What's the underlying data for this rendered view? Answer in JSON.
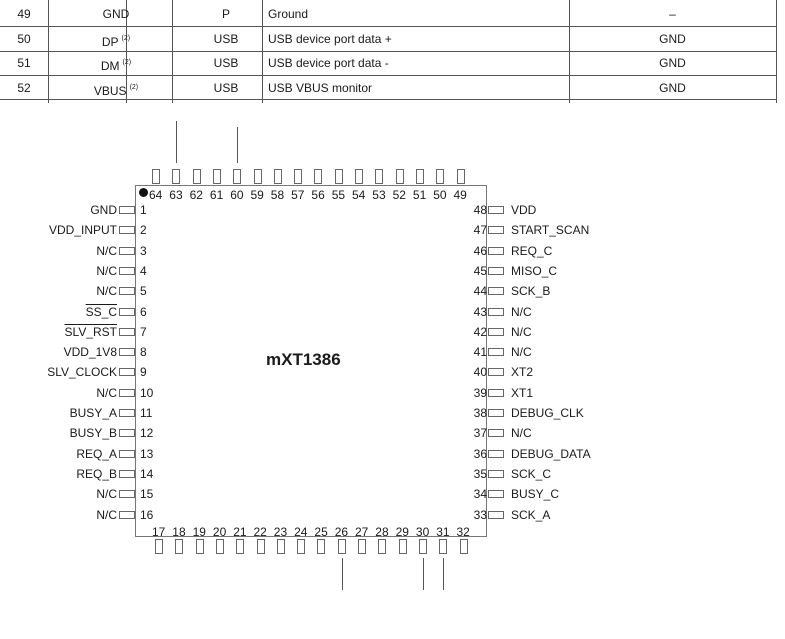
{
  "table": {
    "rows": [
      {
        "pin": "49",
        "name": "GND",
        "note": "",
        "type": "P",
        "description": "Ground",
        "connect": "–"
      },
      {
        "pin": "50",
        "name": "DP",
        "note": "(2)",
        "type": "USB",
        "description": "USB device port data +",
        "connect": "GND"
      },
      {
        "pin": "51",
        "name": "DM",
        "note": "(2)",
        "type": "USB",
        "description": "USB device port data -",
        "connect": "GND"
      },
      {
        "pin": "52",
        "name": "VBUS",
        "note": "(2)",
        "type": "USB",
        "description": "USB VBUS monitor",
        "connect": "GND"
      }
    ]
  },
  "chip": {
    "name": "mXT1386",
    "left_pins": [
      {
        "num": "1",
        "label": "GND"
      },
      {
        "num": "2",
        "label": "VDD_INPUT"
      },
      {
        "num": "3",
        "label": "N/C"
      },
      {
        "num": "4",
        "label": "N/C"
      },
      {
        "num": "5",
        "label": "N/C"
      },
      {
        "num": "6",
        "label": "SS_C",
        "overline": true
      },
      {
        "num": "7",
        "label": "SLV_RST",
        "overline": true
      },
      {
        "num": "8",
        "label": "VDD_1V8"
      },
      {
        "num": "9",
        "label": "SLV_CLOCK"
      },
      {
        "num": "10",
        "label": "N/C"
      },
      {
        "num": "11",
        "label": "BUSY_A"
      },
      {
        "num": "12",
        "label": "BUSY_B"
      },
      {
        "num": "13",
        "label": "REQ_A"
      },
      {
        "num": "14",
        "label": "REQ_B"
      },
      {
        "num": "15",
        "label": "N/C"
      },
      {
        "num": "16",
        "label": "N/C"
      }
    ],
    "right_pins": [
      {
        "num": "48",
        "label": "VDD"
      },
      {
        "num": "47",
        "label": "START_SCAN"
      },
      {
        "num": "46",
        "label": "REQ_C"
      },
      {
        "num": "45",
        "label": "MISO_C"
      },
      {
        "num": "44",
        "label": "SCK_B"
      },
      {
        "num": "43",
        "label": "N/C"
      },
      {
        "num": "42",
        "label": "N/C"
      },
      {
        "num": "41",
        "label": "N/C"
      },
      {
        "num": "40",
        "label": "XT2"
      },
      {
        "num": "39",
        "label": "XT1"
      },
      {
        "num": "38",
        "label": "DEBUG_CLK"
      },
      {
        "num": "37",
        "label": "N/C"
      },
      {
        "num": "36",
        "label": "DEBUG_DATA"
      },
      {
        "num": "35",
        "label": "SCK_C"
      },
      {
        "num": "34",
        "label": "BUSY_C"
      },
      {
        "num": "33",
        "label": "SCK_A"
      }
    ],
    "top_pins": [
      "64",
      "63",
      "62",
      "61",
      "60",
      "59",
      "58",
      "57",
      "56",
      "55",
      "54",
      "53",
      "52",
      "51",
      "50",
      "49"
    ],
    "bottom_pins": [
      "17",
      "18",
      "19",
      "20",
      "21",
      "22",
      "23",
      "24",
      "25",
      "26",
      "27",
      "28",
      "29",
      "30",
      "31",
      "32"
    ],
    "top_wired_pins": [
      "63",
      "60"
    ],
    "bottom_wired_pins": [
      "26",
      "30",
      "31"
    ]
  }
}
